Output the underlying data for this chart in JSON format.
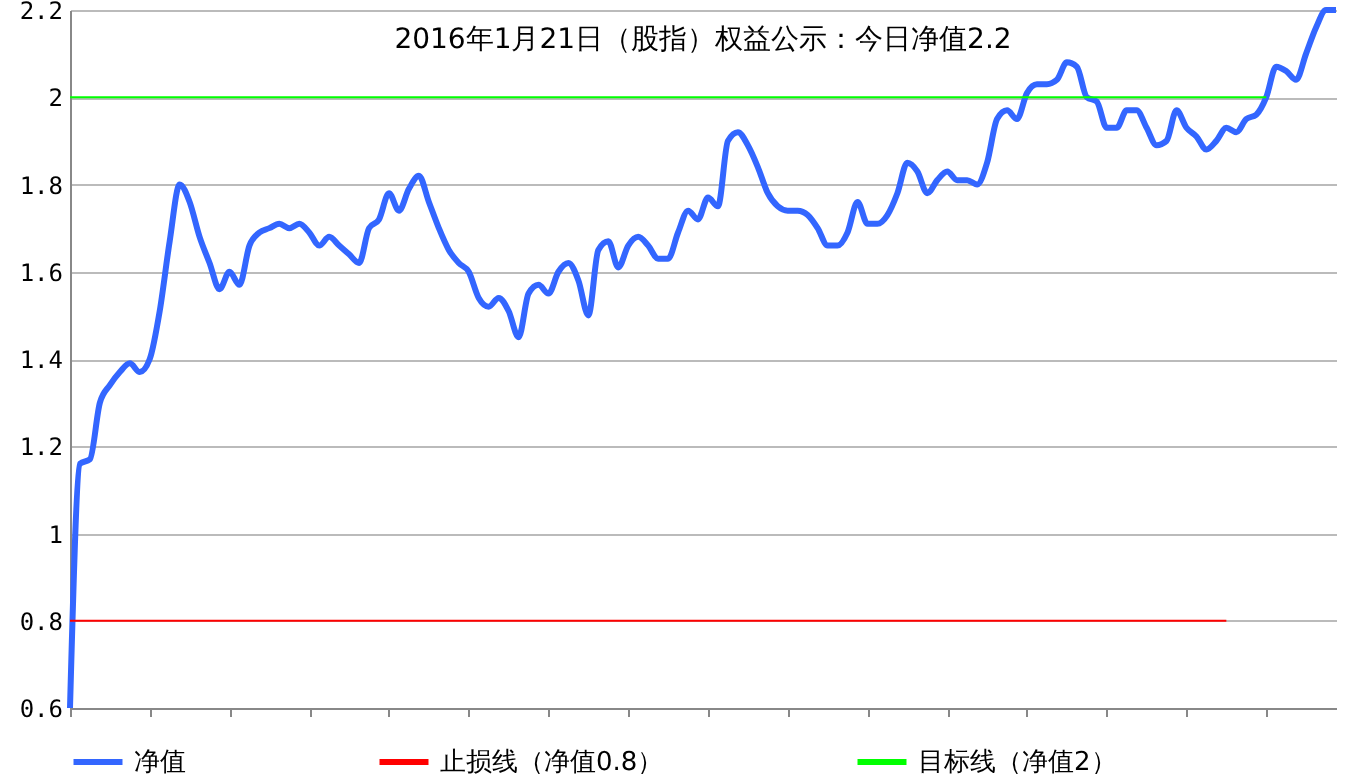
{
  "chart_data": {
    "type": "line",
    "title": "2016年1月21日（股指）权益公示：今日净值2.2",
    "categories": [
      null,
      null,
      null,
      null,
      null,
      null,
      null,
      null,
      null,
      null,
      null,
      null,
      null,
      null,
      null,
      null,
      null,
      null,
      null,
      null,
      null,
      null,
      null,
      null,
      null,
      null,
      null,
      null,
      null,
      null,
      null,
      null,
      null,
      null,
      null,
      null,
      null,
      null,
      null,
      null,
      null,
      null,
      null,
      null,
      null,
      null,
      null,
      null,
      null,
      null,
      null,
      null,
      null,
      null,
      null,
      null,
      null,
      null,
      null,
      null,
      null,
      null,
      null,
      null,
      null,
      null,
      null,
      null,
      null,
      null,
      null,
      null,
      null,
      null,
      null,
      null,
      null,
      null,
      null,
      null,
      null,
      null,
      null,
      null,
      null,
      null,
      null,
      null,
      null,
      null,
      null,
      null,
      null,
      null,
      null,
      null,
      null,
      null,
      null,
      null,
      null,
      null,
      null,
      null,
      null,
      null,
      null,
      null,
      null,
      null,
      null,
      null,
      null,
      null,
      null,
      null,
      null,
      null,
      null,
      null,
      null,
      null,
      null,
      null,
      null,
      null,
      null,
      null
    ],
    "series": [
      {
        "name": "净值",
        "color": "#3366ff",
        "values": [
          0.6,
          1.16,
          1.17,
          1.3,
          1.34,
          1.37,
          1.39,
          1.37,
          1.4,
          1.51,
          1.67,
          1.8,
          1.76,
          1.68,
          1.62,
          1.56,
          1.6,
          1.57,
          1.66,
          1.69,
          1.7,
          1.71,
          1.7,
          1.71,
          1.69,
          1.66,
          1.68,
          1.66,
          1.64,
          1.62,
          1.7,
          1.72,
          1.78,
          1.74,
          1.79,
          1.82,
          1.76,
          1.7,
          1.65,
          1.62,
          1.6,
          1.54,
          1.52,
          1.54,
          1.51,
          1.45,
          1.55,
          1.57,
          1.55,
          1.6,
          1.62,
          1.58,
          1.5,
          1.65,
          1.67,
          1.61,
          1.66,
          1.68,
          1.66,
          1.63,
          1.63,
          1.69,
          1.74,
          1.72,
          1.77,
          1.75,
          1.9,
          1.92,
          1.89,
          1.84,
          1.78,
          1.75,
          1.74,
          1.74,
          1.73,
          1.7,
          1.66,
          1.66,
          1.69,
          1.76,
          1.71,
          1.71,
          1.73,
          1.78,
          1.85,
          1.83,
          1.78,
          1.81,
          1.83,
          1.81,
          1.81,
          1.8,
          1.85,
          1.95,
          1.97,
          1.95,
          2.01,
          2.03,
          2.03,
          2.04,
          2.08,
          2.07,
          2.0,
          1.99,
          1.93,
          1.93,
          1.97,
          1.97,
          1.93,
          1.89,
          1.9,
          1.97,
          1.93,
          1.91,
          1.88,
          1.9,
          1.93,
          1.92,
          1.95,
          1.96,
          2.0,
          2.07,
          2.06,
          2.04,
          2.1,
          2.16,
          2.2,
          2.2
        ]
      },
      {
        "name": "止损线（净值0.8）",
        "color": "#ff0000",
        "values": [
          0.8,
          0.8,
          0.8,
          0.8,
          0.8,
          0.8,
          0.8,
          0.8,
          0.8,
          0.8,
          0.8,
          0.8,
          0.8,
          0.8,
          0.8,
          0.8,
          0.8,
          0.8,
          0.8,
          0.8,
          0.8,
          0.8,
          0.8,
          0.8,
          0.8,
          0.8,
          0.8,
          0.8,
          0.8,
          0.8,
          0.8,
          0.8,
          0.8,
          0.8,
          0.8,
          0.8,
          0.8,
          0.8,
          0.8,
          0.8,
          0.8,
          0.8,
          0.8,
          0.8,
          0.8,
          0.8,
          0.8,
          0.8,
          0.8,
          0.8,
          0.8,
          0.8,
          0.8,
          0.8,
          0.8,
          0.8,
          0.8,
          0.8,
          0.8,
          0.8,
          0.8,
          0.8,
          0.8,
          0.8,
          0.8,
          0.8,
          0.8,
          0.8,
          0.8,
          0.8,
          0.8,
          0.8,
          0.8,
          0.8,
          0.8,
          0.8,
          0.8,
          0.8,
          0.8,
          0.8,
          0.8,
          0.8,
          0.8,
          0.8,
          0.8,
          0.8,
          0.8,
          0.8,
          0.8,
          0.8,
          0.8,
          0.8,
          0.8,
          0.8,
          0.8,
          0.8,
          0.8,
          0.8,
          0.8,
          0.8,
          0.8,
          0.8,
          0.8,
          0.8,
          0.8,
          0.8,
          0.8,
          0.8,
          0.8,
          0.8,
          0.8,
          0.8,
          0.8,
          0.8,
          0.8,
          0.8,
          0.8,
          null,
          null,
          null,
          null,
          null,
          null,
          null,
          null,
          null,
          null,
          null
        ]
      },
      {
        "name": "目标线（净值2）",
        "color": "#00ff00",
        "values": [
          2,
          2,
          2,
          2,
          2,
          2,
          2,
          2,
          2,
          2,
          2,
          2,
          2,
          2,
          2,
          2,
          2,
          2,
          2,
          2,
          2,
          2,
          2,
          2,
          2,
          2,
          2,
          2,
          2,
          2,
          2,
          2,
          2,
          2,
          2,
          2,
          2,
          2,
          2,
          2,
          2,
          2,
          2,
          2,
          2,
          2,
          2,
          2,
          2,
          2,
          2,
          2,
          2,
          2,
          2,
          2,
          2,
          2,
          2,
          2,
          2,
          2,
          2,
          2,
          2,
          2,
          2,
          2,
          2,
          2,
          2,
          2,
          2,
          2,
          2,
          2,
          2,
          2,
          2,
          2,
          2,
          2,
          2,
          2,
          2,
          2,
          2,
          2,
          2,
          2,
          2,
          2,
          2,
          2,
          2,
          2,
          2,
          2,
          2,
          2,
          2,
          2,
          2,
          2,
          2,
          2,
          2,
          2,
          2,
          2,
          2,
          2,
          2,
          2,
          2,
          2,
          2,
          2,
          2,
          2,
          2,
          null,
          null,
          null,
          null,
          null,
          null,
          null
        ]
      }
    ],
    "ylim": [
      0.6,
      2.2
    ],
    "yticks": [
      0.6,
      0.8,
      1,
      1.2,
      1.4,
      1.6,
      1.8,
      2,
      2.2
    ],
    "grid": "y",
    "legend": "bottom",
    "tick_labels": "y",
    "line_style": "solid"
  }
}
